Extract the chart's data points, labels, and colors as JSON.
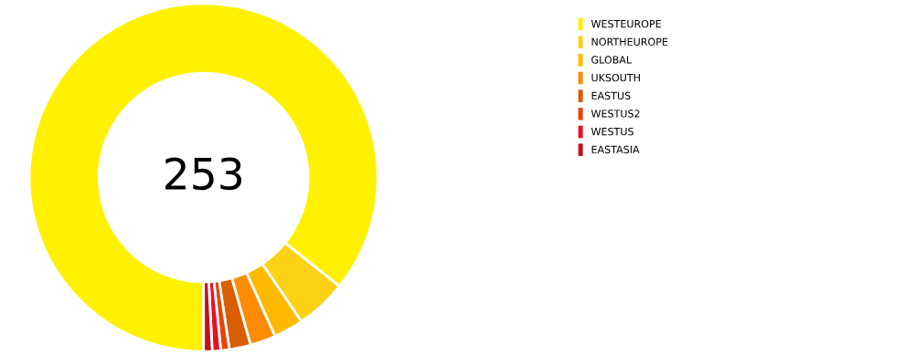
{
  "chart_data": {
    "type": "donut",
    "categories": [
      "WESTEUROPE",
      "NORTHEUROPE",
      "GLOBAL",
      "UKSOUTH",
      "EASTUS",
      "WESTUS2",
      "WESTUS",
      "EASTASIA"
    ],
    "values": [
      217,
      12,
      7,
      6,
      5,
      2,
      2,
      2
    ],
    "colors": [
      "#fff100",
      "#fcd116",
      "#ffb900",
      "#ff8c00",
      "#da5d00",
      "#ea4300",
      "#e81123",
      "#c1121f"
    ],
    "annotations": [
      "253"
    ],
    "legend": "top right"
  }
}
